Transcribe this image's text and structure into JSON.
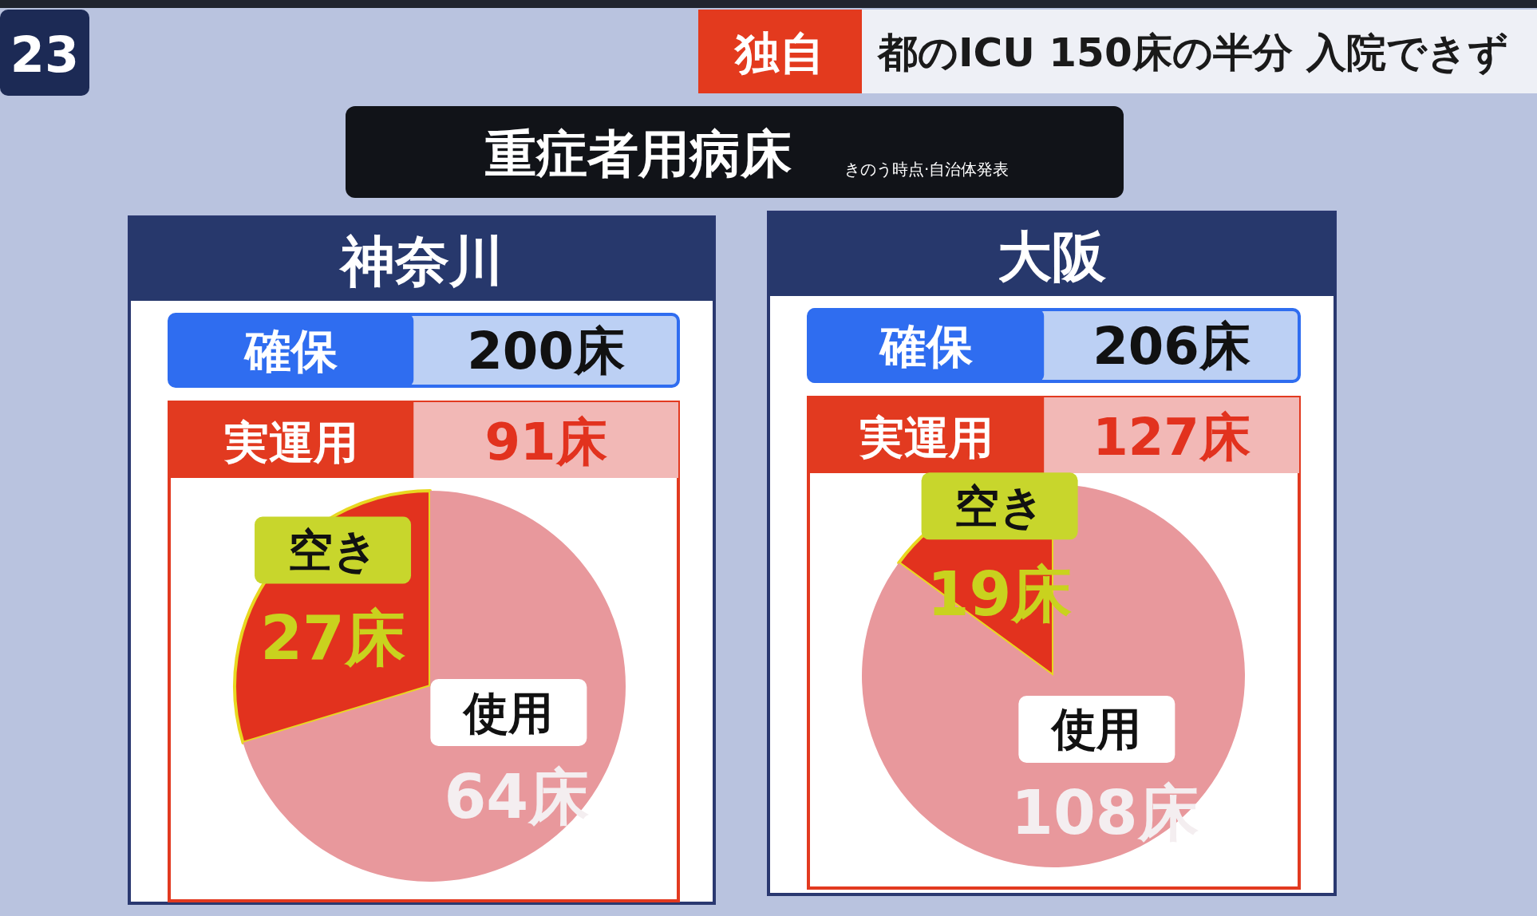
{
  "chart_data": [
    {
      "type": "pie",
      "title": "神奈川",
      "categories": [
        "空き",
        "使用"
      ],
      "values": [
        27,
        64
      ],
      "colors": [
        "#e2321e",
        "#e8989c"
      ],
      "value_labels": [
        "27床",
        "64床"
      ],
      "annotations": [
        "確保",
        "200床",
        "実運用",
        "91床",
        "23",
        "独自",
        "都のICU 150床の半分 入院できず",
        "重症者用病床",
        "きのう時点·自治体発表"
      ]
    },
    {
      "type": "pie",
      "title": "大阪",
      "categories": [
        "空き",
        "使用"
      ],
      "values": [
        19,
        108
      ],
      "colors": [
        "#e2321e",
        "#e8989c"
      ],
      "value_labels": [
        "19床",
        "108床"
      ],
      "annotations": [
        "確保",
        "206床",
        "実運用",
        "127床"
      ]
    }
  ]
}
